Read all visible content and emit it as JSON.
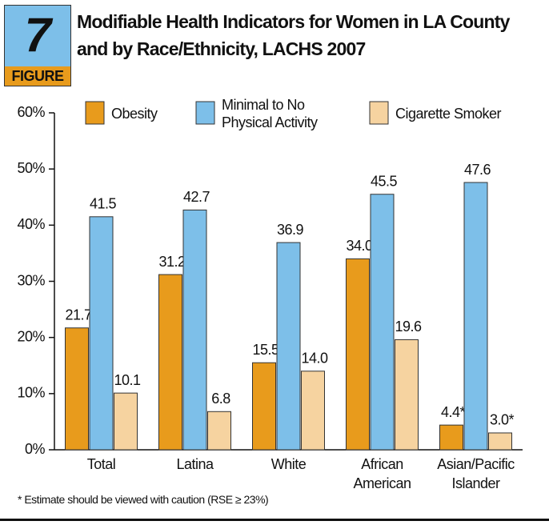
{
  "chart_data": {
    "type": "bar",
    "badge": {
      "number": "7",
      "label": "FIGURE"
    },
    "title": "Modifiable Health Indicators for Women in LA County and by Race/Ethnicity, LACHS 2007",
    "categories": [
      "Total",
      "Latina",
      "White",
      "African American",
      "Asian/Pacific Islander"
    ],
    "series": [
      {
        "name": "Obesity",
        "color": "#e89b1c",
        "values": [
          21.7,
          31.2,
          15.5,
          34.0,
          4.4
        ],
        "value_labels": [
          "21.7",
          "31.2",
          "15.5",
          "34.0",
          "4.4*"
        ]
      },
      {
        "name": "Minimal to No Physical Activity",
        "color": "#7dbfe9",
        "values": [
          41.5,
          42.7,
          36.9,
          45.5,
          47.6
        ],
        "value_labels": [
          "41.5",
          "42.7",
          "36.9",
          "45.5",
          "47.6"
        ]
      },
      {
        "name": "Cigarette Smoker",
        "color": "#f6d3a0",
        "values": [
          10.1,
          6.8,
          14.0,
          19.6,
          3.0
        ],
        "value_labels": [
          "10.1",
          "6.8",
          "14.0",
          "19.6",
          "3.0*"
        ]
      }
    ],
    "ylim": [
      0,
      60
    ],
    "yticks": [
      {
        "value": 0,
        "label": "0%"
      },
      {
        "value": 10,
        "label": "10%"
      },
      {
        "value": 20,
        "label": "20%"
      },
      {
        "value": 30,
        "label": "30%"
      },
      {
        "value": 40,
        "label": "40%"
      },
      {
        "value": 50,
        "label": "50%"
      },
      {
        "value": 60,
        "label": "60%"
      }
    ],
    "footnote": "* Estimate should be viewed with caution (RSE ≥ 23%)"
  }
}
